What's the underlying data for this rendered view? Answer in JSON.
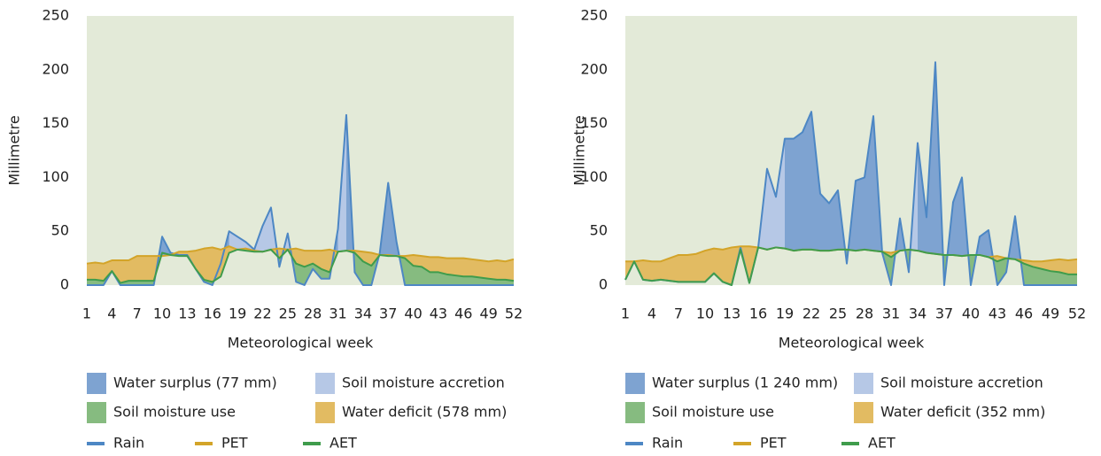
{
  "chart_data": [
    {
      "type": "area",
      "y_label": "Millimetre",
      "x_label": "Meteorological week",
      "x": [
        1,
        2,
        3,
        4,
        5,
        6,
        7,
        8,
        9,
        10,
        11,
        12,
        13,
        14,
        15,
        16,
        17,
        18,
        19,
        20,
        21,
        22,
        23,
        24,
        25,
        26,
        27,
        28,
        29,
        30,
        31,
        32,
        33,
        34,
        35,
        36,
        37,
        38,
        39,
        40,
        41,
        42,
        43,
        44,
        45,
        46,
        47,
        48,
        49,
        50,
        51,
        52
      ],
      "xlim": [
        1,
        52
      ],
      "xticks": [
        1,
        4,
        7,
        10,
        13,
        16,
        19,
        22,
        25,
        28,
        31,
        34,
        37,
        40,
        43,
        46,
        49,
        52
      ],
      "ylim": [
        0,
        250
      ],
      "yticks": [
        0,
        50,
        100,
        150,
        200,
        250
      ],
      "areas": [
        {
          "name": "Water surplus (77 mm)",
          "color": "#7ea3d1"
        },
        {
          "name": "Soil moisture accretion",
          "color": "#b6c8e6"
        },
        {
          "name": "Soil moisture use",
          "color": "#86bb80"
        },
        {
          "name": "Water deficit (578 mm)",
          "color": "#e2bb62"
        }
      ],
      "accretion_weeks": [
        18,
        19,
        20,
        21,
        22,
        23,
        24,
        25,
        31
      ],
      "series": [
        {
          "name": "Rain",
          "color": "#4d87c4",
          "values": [
            0,
            0,
            0,
            13,
            0,
            0,
            0,
            0,
            0,
            45,
            30,
            28,
            28,
            15,
            3,
            0,
            20,
            50,
            45,
            40,
            33,
            55,
            72,
            17,
            48,
            3,
            0,
            15,
            6,
            6,
            52,
            158,
            12,
            0,
            0,
            30,
            95,
            40,
            0,
            0,
            0,
            0,
            0,
            0,
            0,
            0,
            0,
            0,
            0,
            0,
            0,
            0
          ]
        },
        {
          "name": "PET",
          "color": "#d3a429",
          "values": [
            20,
            21,
            20,
            23,
            23,
            23,
            27,
            27,
            27,
            27,
            28,
            31,
            31,
            32,
            34,
            35,
            33,
            36,
            33,
            34,
            32,
            31,
            33,
            34,
            33,
            34,
            32,
            32,
            32,
            33,
            31,
            32,
            32,
            31,
            30,
            28,
            28,
            27,
            27,
            28,
            27,
            26,
            26,
            25,
            25,
            25,
            24,
            23,
            22,
            23,
            22,
            24
          ]
        },
        {
          "name": "AET",
          "color": "#3f9c4c",
          "values": [
            5,
            5,
            4,
            13,
            2,
            4,
            4,
            4,
            4,
            30,
            28,
            27,
            27,
            15,
            5,
            3,
            8,
            30,
            33,
            32,
            31,
            31,
            33,
            25,
            33,
            20,
            17,
            20,
            15,
            12,
            31,
            32,
            30,
            22,
            18,
            28,
            27,
            27,
            25,
            18,
            17,
            12,
            12,
            10,
            9,
            8,
            8,
            7,
            6,
            5,
            5,
            4
          ]
        }
      ]
    },
    {
      "type": "area",
      "y_label": "Millimetre",
      "x_label": "Meteorological week",
      "x": [
        1,
        2,
        3,
        4,
        5,
        6,
        7,
        8,
        9,
        10,
        11,
        12,
        13,
        14,
        15,
        16,
        17,
        18,
        19,
        20,
        21,
        22,
        23,
        24,
        25,
        26,
        27,
        28,
        29,
        30,
        31,
        32,
        33,
        34,
        35,
        36,
        37,
        38,
        39,
        40,
        41,
        42,
        43,
        44,
        45,
        46,
        47,
        48,
        49,
        50,
        51,
        52
      ],
      "xlim": [
        1,
        52
      ],
      "xticks": [
        1,
        4,
        7,
        10,
        13,
        16,
        19,
        22,
        25,
        28,
        31,
        34,
        37,
        40,
        43,
        46,
        49,
        52
      ],
      "ylim": [
        0,
        250
      ],
      "yticks": [
        0,
        50,
        100,
        150,
        200,
        250
      ],
      "areas": [
        {
          "name": "Water surplus (1 240 mm)",
          "color": "#7ea3d1"
        },
        {
          "name": "Soil moisture accretion",
          "color": "#b6c8e6"
        },
        {
          "name": "Soil moisture use",
          "color": "#86bb80"
        },
        {
          "name": "Water deficit (352 mm)",
          "color": "#e2bb62"
        }
      ],
      "accretion_weeks": [
        16,
        17,
        18,
        33
      ],
      "series": [
        {
          "name": "Rain",
          "color": "#4d87c4",
          "values": [
            5,
            22,
            5,
            4,
            5,
            4,
            3,
            3,
            3,
            3,
            11,
            3,
            0,
            35,
            2,
            35,
            108,
            82,
            136,
            136,
            142,
            161,
            85,
            76,
            88,
            20,
            97,
            100,
            157,
            30,
            0,
            62,
            12,
            132,
            63,
            207,
            0,
            77,
            100,
            0,
            45,
            51,
            0,
            12,
            64,
            0,
            0,
            0,
            0,
            0,
            0,
            0
          ]
        },
        {
          "name": "PET",
          "color": "#d3a429",
          "values": [
            22,
            22,
            23,
            22,
            22,
            25,
            28,
            28,
            29,
            32,
            34,
            33,
            35,
            36,
            36,
            35,
            33,
            35,
            34,
            32,
            33,
            33,
            32,
            32,
            33,
            33,
            32,
            33,
            32,
            31,
            30,
            32,
            33,
            32,
            30,
            29,
            28,
            28,
            27,
            28,
            28,
            26,
            27,
            25,
            24,
            23,
            22,
            22,
            23,
            24,
            23,
            24
          ]
        },
        {
          "name": "AET",
          "color": "#3f9c4c",
          "values": [
            5,
            22,
            5,
            4,
            5,
            4,
            3,
            3,
            3,
            3,
            11,
            3,
            0,
            33,
            2,
            35,
            33,
            35,
            34,
            32,
            33,
            33,
            32,
            32,
            33,
            33,
            32,
            33,
            32,
            31,
            26,
            32,
            33,
            32,
            30,
            29,
            28,
            28,
            27,
            28,
            28,
            26,
            22,
            25,
            24,
            20,
            17,
            15,
            13,
            12,
            10,
            10
          ]
        }
      ]
    }
  ]
}
